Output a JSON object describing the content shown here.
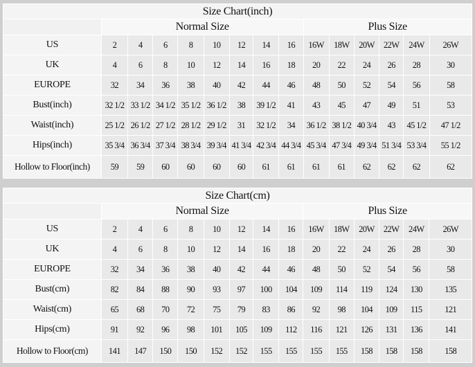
{
  "colors": {
    "cell_bg": "#e9e9e9",
    "label_bg": "#f4f4f4",
    "frame": "#cfcfcf"
  },
  "tables": [
    {
      "title": "Size Chart(inch)",
      "normal_label": "Normal Size",
      "plus_label": "Plus Size",
      "rows": [
        {
          "label": "US",
          "values": [
            "2",
            "4",
            "6",
            "8",
            "10",
            "12",
            "14",
            "16",
            "16W",
            "18W",
            "20W",
            "22W",
            "24W",
            "26W"
          ]
        },
        {
          "label": "UK",
          "values": [
            "4",
            "6",
            "8",
            "10",
            "12",
            "14",
            "16",
            "18",
            "20",
            "22",
            "24",
            "26",
            "28",
            "30"
          ]
        },
        {
          "label": "EUROPE",
          "values": [
            "32",
            "34",
            "36",
            "38",
            "40",
            "42",
            "44",
            "46",
            "48",
            "50",
            "52",
            "54",
            "56",
            "58"
          ]
        },
        {
          "label": "Bust(inch)",
          "values": [
            "32 1/2",
            "33 1/2",
            "34 1/2",
            "35 1/2",
            "36 1/2",
            "38",
            "39 1/2",
            "41",
            "43",
            "45",
            "47",
            "49",
            "51",
            "53"
          ]
        },
        {
          "label": "Waist(inch)",
          "values": [
            "25 1/2",
            "26 1/2",
            "27 1/2",
            "28 1/2",
            "29 1/2",
            "31",
            "32 1/2",
            "34",
            "36 1/2",
            "38 1/2",
            "40 3/4",
            "43",
            "45 1/2",
            "47 1/2"
          ]
        },
        {
          "label": "Hips(inch)",
          "values": [
            "35 3/4",
            "36 3/4",
            "37 3/4",
            "38 3/4",
            "39 3/4",
            "41 3/4",
            "42 3/4",
            "44 3/4",
            "45 3/4",
            "47 3/4",
            "49 3/4",
            "51 3/4",
            "53 3/4",
            "55 1/2"
          ]
        },
        {
          "label": "Hollow to Floor(inch)",
          "values": [
            "59",
            "59",
            "60",
            "60",
            "60",
            "60",
            "61",
            "61",
            "61",
            "61",
            "62",
            "62",
            "62",
            "62"
          ]
        }
      ]
    },
    {
      "title": "Size Chart(cm)",
      "normal_label": "Normal Size",
      "plus_label": "Plus Size",
      "rows": [
        {
          "label": "US",
          "values": [
            "2",
            "4",
            "6",
            "8",
            "10",
            "12",
            "14",
            "16",
            "16W",
            "18W",
            "20W",
            "22W",
            "24W",
            "26W"
          ]
        },
        {
          "label": "UK",
          "values": [
            "4",
            "6",
            "8",
            "10",
            "12",
            "14",
            "16",
            "18",
            "20",
            "22",
            "24",
            "26",
            "28",
            "30"
          ]
        },
        {
          "label": "EUROPE",
          "values": [
            "32",
            "34",
            "36",
            "38",
            "40",
            "42",
            "44",
            "46",
            "48",
            "50",
            "52",
            "54",
            "56",
            "58"
          ]
        },
        {
          "label": "Bust(cm)",
          "values": [
            "82",
            "84",
            "88",
            "90",
            "93",
            "97",
            "100",
            "104",
            "109",
            "114",
            "119",
            "124",
            "130",
            "135"
          ]
        },
        {
          "label": "Waist(cm)",
          "values": [
            "65",
            "68",
            "70",
            "72",
            "75",
            "79",
            "83",
            "86",
            "92",
            "98",
            "104",
            "109",
            "115",
            "121"
          ]
        },
        {
          "label": "Hips(cm)",
          "values": [
            "91",
            "92",
            "96",
            "98",
            "101",
            "105",
            "109",
            "112",
            "116",
            "121",
            "126",
            "131",
            "136",
            "141"
          ]
        },
        {
          "label": "Hollow to Floor(cm)",
          "values": [
            "141",
            "147",
            "150",
            "150",
            "152",
            "152",
            "155",
            "155",
            "155",
            "155",
            "158",
            "158",
            "158",
            "158"
          ]
        }
      ]
    }
  ]
}
